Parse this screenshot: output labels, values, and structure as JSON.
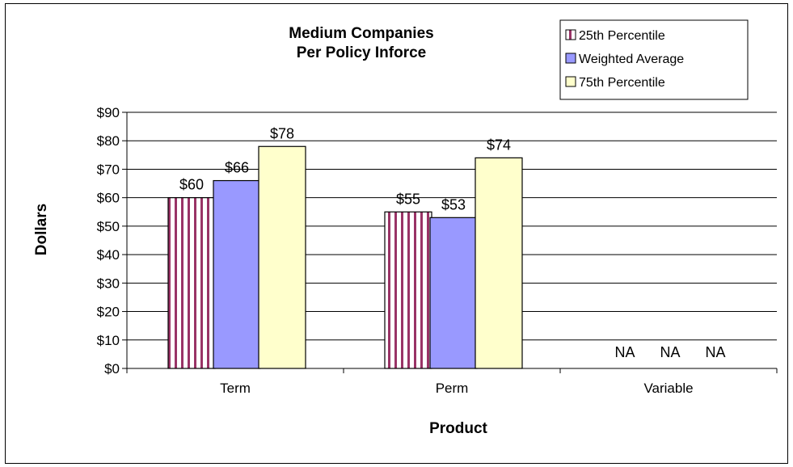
{
  "chart_data": {
    "type": "bar",
    "title": [
      "Medium Companies",
      "Per Policy Inforce"
    ],
    "xlabel": "Product",
    "ylabel": "Dollars",
    "categories": [
      "Term",
      "Perm",
      "Variable"
    ],
    "series": [
      {
        "name": "25th Percentile",
        "values": [
          60,
          55,
          null
        ],
        "color": "#ffffff",
        "pattern": "vertical-stripes",
        "stripe_color": "#993366"
      },
      {
        "name": "Weighted Average",
        "values": [
          66,
          53,
          null
        ],
        "color": "#9999ff"
      },
      {
        "name": "75th Percentile",
        "values": [
          78,
          74,
          null
        ],
        "color": "#ffffcc"
      }
    ],
    "data_labels": [
      [
        "$60",
        "$66",
        "$78"
      ],
      [
        "$55",
        "$53",
        "$74"
      ],
      [
        "NA",
        "NA",
        "NA"
      ]
    ],
    "y_ticks": [
      "$0",
      "$10",
      "$20",
      "$30",
      "$40",
      "$50",
      "$60",
      "$70",
      "$80",
      "$90"
    ],
    "ylim": [
      0,
      90
    ],
    "grid": true,
    "legend_position": "top-right"
  }
}
